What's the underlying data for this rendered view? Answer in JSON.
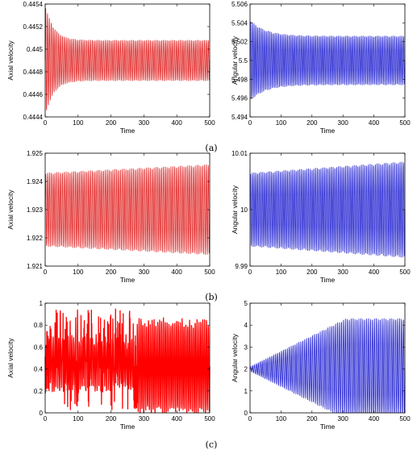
{
  "chart_data": [
    {
      "id": "a-left",
      "type": "line",
      "xlabel": "Time",
      "ylabel": "Axial velocity",
      "xlim": [
        0,
        500
      ],
      "ylim": [
        0.4444,
        0.4454
      ],
      "xticks": [
        "0",
        "100",
        "200",
        "300",
        "400",
        "500"
      ],
      "yticks": [
        "0.4444",
        "0.4446",
        "0.4448",
        "0.445",
        "0.4452",
        "0.4454"
      ],
      "color": "#e02020",
      "center": 0.4449,
      "amp_start": 0.0005,
      "amp_end": 0.00018,
      "decay": 0.04,
      "growth": 0,
      "cycles": 88,
      "series": [
        {
          "values_summary": "oscillation about 0.4449, amplitude decays from ~0.0005 to ~0.00018"
        }
      ]
    },
    {
      "id": "a-right",
      "type": "line",
      "xlabel": "Time",
      "ylabel": "Angular velocity",
      "xlim": [
        0,
        500
      ],
      "ylim": [
        5.494,
        5.506
      ],
      "xticks": [
        "0",
        "100",
        "200",
        "300",
        "400",
        "500"
      ],
      "yticks": [
        "5.494",
        "5.496",
        "5.498",
        "5.5",
        "5.502",
        "5.504",
        "5.506"
      ],
      "color": "#1f1fd0",
      "center": 5.5,
      "amp_start": 0.0043,
      "amp_end": 0.0026,
      "decay": 0.02,
      "growth": 0,
      "cycles": 88,
      "series": [
        {
          "values_summary": "oscillation about 5.5, amplitude decays from ~0.0043 to ~0.0026"
        }
      ]
    },
    {
      "id": "b-left",
      "type": "line",
      "xlabel": "Time",
      "ylabel": "Axial velocity",
      "xlim": [
        0,
        500
      ],
      "ylim": [
        1.921,
        1.925
      ],
      "xticks": [
        "0",
        "100",
        "200",
        "300",
        "400",
        "500"
      ],
      "yticks": [
        "1.921",
        "1.922",
        "1.923",
        "1.924",
        "1.925"
      ],
      "color": "#e02020",
      "center": 1.923,
      "amp_start": 0.0013,
      "amp_end": 0.0016,
      "decay": 0,
      "growth": 1,
      "cycles": 88,
      "series": [
        {
          "values_summary": "oscillation about 1.923, amplitude slowly grows from ~0.0013 to ~0.0016"
        }
      ]
    },
    {
      "id": "b-right",
      "type": "line",
      "xlabel": "Time",
      "ylabel": "Angular velocity",
      "xlim": [
        0,
        500
      ],
      "ylim": [
        9.99,
        10.01
      ],
      "xticks": [
        "0",
        "100",
        "200",
        "300",
        "400",
        "500"
      ],
      "yticks": [
        "9.99",
        "10",
        "10.01"
      ],
      "color": "#1f1fd0",
      "center": 10.0,
      "amp_start": 0.0065,
      "amp_end": 0.0085,
      "decay": 0,
      "growth": 1,
      "cycles": 88,
      "series": [
        {
          "values_summary": "oscillation about 10, amplitude slowly grows from ~0.0065 to ~0.0085"
        }
      ]
    },
    {
      "id": "c-left",
      "type": "line",
      "xlabel": "Time",
      "ylabel": "Axial velocity",
      "xlim": [
        0,
        500
      ],
      "ylim": [
        0,
        1
      ],
      "xticks": [
        "0",
        "100",
        "200",
        "300",
        "400",
        "500"
      ],
      "yticks": [
        "0",
        "0.2",
        "0.4",
        "0.6",
        "0.8",
        "1"
      ],
      "color": "#ff0000",
      "mode": "chaotic",
      "series": [
        {
          "values_summary": "irregular spikes between 0 and ~0.95; dense band ~0.2–0.75 up to t≈280, then oscillations 0–0.9"
        }
      ]
    },
    {
      "id": "c-right",
      "type": "line",
      "xlabel": "Time",
      "ylabel": "Angular velocity",
      "xlim": [
        0,
        500
      ],
      "ylim": [
        0,
        5
      ],
      "xticks": [
        "0",
        "100",
        "200",
        "300",
        "400",
        "500"
      ],
      "yticks": [
        "0",
        "1",
        "2",
        "3",
        "4",
        "5"
      ],
      "color": "#1f1fd0",
      "mode": "growing",
      "series": [
        {
          "values_summary": "oscillation about 2, amplitude grows from ~0.1 to ~2.3 by t≈310, then saturates between ~0 and ~4.3"
        }
      ]
    }
  ],
  "captions": [
    "(a)",
    "(b)",
    "(c)"
  ]
}
